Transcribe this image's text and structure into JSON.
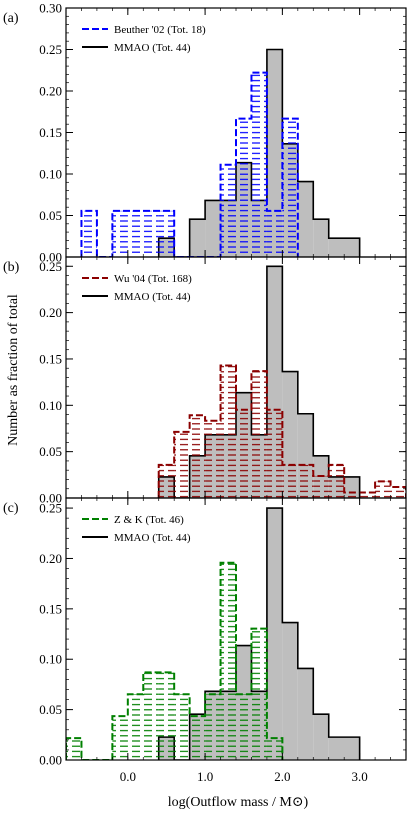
{
  "figure": {
    "xlabel": "log(Outflow mass / M⊙)",
    "ylabel": "Number as fraction of total",
    "xlim": [
      -0.8,
      3.6
    ],
    "xticks": [
      0.0,
      1.0,
      2.0,
      3.0
    ],
    "xtick_labels": [
      "0.0",
      "1.0",
      "2.0",
      "3.0"
    ],
    "colors": {
      "mmao_fill": "#bebebe",
      "mmao_line": "#000000",
      "beuther": "#0000ff",
      "wu": "#8b0000",
      "zk": "#008000"
    }
  },
  "chart_data": [
    {
      "type": "bar",
      "panel_label": "(a)",
      "ylim": [
        0,
        0.3
      ],
      "yticks": [
        0.0,
        0.05,
        0.1,
        0.15,
        0.2,
        0.25,
        0.3
      ],
      "ytick_labels": [
        "0.00",
        "0.05",
        "0.10",
        "0.15",
        "0.20",
        "0.25",
        "0.30"
      ],
      "legend_position": "top-left",
      "series": [
        {
          "name": "Beuther '02 (Tot. 18)",
          "style": "dashed-hatch",
          "color": "#0000ff",
          "bins": [
            [
              -0.6,
              -0.4,
              0.0556
            ],
            [
              -0.4,
              -0.2,
              0.0
            ],
            [
              -0.2,
              0.0,
              0.0556
            ],
            [
              0.0,
              0.2,
              0.0556
            ],
            [
              0.2,
              0.4,
              0.0556
            ],
            [
              0.4,
              0.6,
              0.0556
            ],
            [
              0.6,
              0.8,
              0.0
            ],
            [
              0.8,
              1.0,
              0.0
            ],
            [
              1.0,
              1.2,
              0.0
            ],
            [
              1.2,
              1.4,
              0.1111
            ],
            [
              1.4,
              1.6,
              0.1667
            ],
            [
              1.6,
              1.8,
              0.2222
            ],
            [
              1.8,
              2.0,
              0.0556
            ],
            [
              2.0,
              2.2,
              0.1667
            ]
          ]
        },
        {
          "name": "MMAO (Tot. 44)",
          "style": "filled",
          "color": "#000000",
          "bins": [
            [
              0.4,
              0.6,
              0.0227
            ],
            [
              0.6,
              0.8,
              0.0
            ],
            [
              0.8,
              1.0,
              0.0455
            ],
            [
              1.0,
              1.2,
              0.0682
            ],
            [
              1.2,
              1.4,
              0.0682
            ],
            [
              1.4,
              1.6,
              0.1136
            ],
            [
              1.6,
              1.8,
              0.0682
            ],
            [
              1.8,
              2.0,
              0.25
            ],
            [
              2.0,
              2.2,
              0.1364
            ],
            [
              2.2,
              2.4,
              0.0909
            ],
            [
              2.4,
              2.6,
              0.0455
            ],
            [
              2.6,
              3.0,
              0.0227
            ]
          ]
        }
      ]
    },
    {
      "type": "bar",
      "panel_label": "(b)",
      "ylim": [
        0,
        0.26
      ],
      "yticks": [
        0.0,
        0.05,
        0.1,
        0.15,
        0.2,
        0.25
      ],
      "ytick_labels": [
        "0.00",
        "0.05",
        "0.10",
        "0.15",
        "0.20",
        "0.25"
      ],
      "legend_position": "top-left",
      "series": [
        {
          "name": "Wu '04 (Tot. 168)",
          "style": "dashed-hatch",
          "color": "#8b0000",
          "bins": [
            [
              0.4,
              0.6,
              0.0357
            ],
            [
              0.6,
              0.8,
              0.0714
            ],
            [
              0.8,
              1.0,
              0.0893
            ],
            [
              1.0,
              1.2,
              0.0833
            ],
            [
              1.2,
              1.4,
              0.1429
            ],
            [
              1.4,
              1.6,
              0.0952
            ],
            [
              1.6,
              1.8,
              0.1369
            ],
            [
              1.8,
              2.0,
              0.0952
            ],
            [
              2.0,
              2.4,
              0.0357
            ],
            [
              2.4,
              2.6,
              0.0238
            ],
            [
              2.6,
              2.8,
              0.0357
            ],
            [
              2.8,
              3.0,
              0.006
            ],
            [
              3.0,
              3.2,
              0.006
            ],
            [
              3.2,
              3.4,
              0.0179
            ],
            [
              3.4,
              3.6,
              0.0119
            ]
          ]
        },
        {
          "name": "MMAO (Tot. 44)",
          "style": "filled",
          "color": "#000000",
          "bins": [
            [
              0.4,
              0.6,
              0.0227
            ],
            [
              0.6,
              0.8,
              0.0
            ],
            [
              0.8,
              1.0,
              0.0455
            ],
            [
              1.0,
              1.2,
              0.0682
            ],
            [
              1.2,
              1.4,
              0.0682
            ],
            [
              1.4,
              1.6,
              0.1136
            ],
            [
              1.6,
              1.8,
              0.0682
            ],
            [
              1.8,
              2.0,
              0.25
            ],
            [
              2.0,
              2.2,
              0.1364
            ],
            [
              2.2,
              2.4,
              0.0909
            ],
            [
              2.4,
              2.6,
              0.0455
            ],
            [
              2.6,
              3.0,
              0.0227
            ]
          ]
        }
      ]
    },
    {
      "type": "bar",
      "panel_label": "(c)",
      "ylim": [
        0,
        0.26
      ],
      "yticks": [
        0.0,
        0.05,
        0.1,
        0.15,
        0.2,
        0.25
      ],
      "ytick_labels": [
        "0.00",
        "0.05",
        "0.10",
        "0.15",
        "0.20",
        "0.25"
      ],
      "legend_position": "top-left",
      "series": [
        {
          "name": "Z & K (Tot. 46)",
          "style": "dashed-hatch",
          "color": "#008000",
          "bins": [
            [
              -0.8,
              -0.6,
              0.0217
            ],
            [
              -0.6,
              -0.4,
              0.0
            ],
            [
              -0.4,
              -0.2,
              0.0
            ],
            [
              -0.2,
              0.0,
              0.0435
            ],
            [
              0.0,
              0.2,
              0.0652
            ],
            [
              0.2,
              0.4,
              0.087
            ],
            [
              0.4,
              0.6,
              0.087
            ],
            [
              0.6,
              0.8,
              0.0652
            ],
            [
              0.8,
              1.0,
              0.0435
            ],
            [
              1.0,
              1.2,
              0.0652
            ],
            [
              1.2,
              1.4,
              0.1957
            ],
            [
              1.4,
              1.6,
              0.0652
            ],
            [
              1.6,
              1.8,
              0.1304
            ],
            [
              1.8,
              2.0,
              0.0217
            ]
          ]
        },
        {
          "name": "MMAO (Tot. 44)",
          "style": "filled",
          "color": "#000000",
          "bins": [
            [
              0.4,
              0.6,
              0.0227
            ],
            [
              0.6,
              0.8,
              0.0
            ],
            [
              0.8,
              1.0,
              0.0455
            ],
            [
              1.0,
              1.2,
              0.0682
            ],
            [
              1.2,
              1.4,
              0.0682
            ],
            [
              1.4,
              1.6,
              0.1136
            ],
            [
              1.6,
              1.8,
              0.0682
            ],
            [
              1.8,
              2.0,
              0.25
            ],
            [
              2.0,
              2.2,
              0.1364
            ],
            [
              2.2,
              2.4,
              0.0909
            ],
            [
              2.4,
              2.6,
              0.0455
            ],
            [
              2.6,
              3.0,
              0.0227
            ]
          ]
        }
      ]
    }
  ]
}
